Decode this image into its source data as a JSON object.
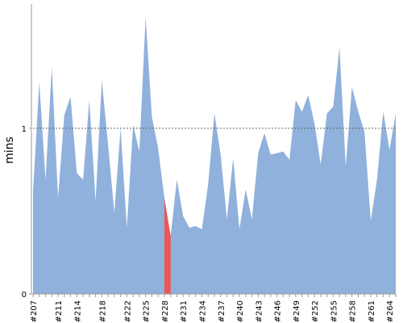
{
  "chart_data": {
    "type": "area",
    "ylabel": "mins",
    "xlabel": "",
    "ylim": [
      0,
      1.75
    ],
    "y_ticks": [
      "0",
      "1"
    ],
    "reference_line": 1,
    "grid": false,
    "colors": {
      "area": "#8fb1dc",
      "highlight": "#ee5555",
      "axis": "#999999",
      "reference": "#666666"
    },
    "x": [
      207,
      208,
      209,
      210,
      211,
      212,
      213,
      214,
      215,
      216,
      217,
      218,
      219,
      220,
      221,
      222,
      223,
      224,
      225,
      226,
      227,
      228,
      229,
      230,
      231,
      232,
      233,
      234,
      235,
      236,
      237,
      238,
      239,
      240,
      241,
      242,
      243,
      244,
      245,
      246,
      247,
      248,
      249,
      250,
      251,
      252,
      253,
      254,
      255,
      256,
      257,
      258,
      259,
      260,
      261,
      262,
      263,
      264,
      265
    ],
    "x_tick_labels": [
      "#207",
      "#211",
      "#214",
      "#218",
      "#222",
      "#225",
      "#228",
      "#231",
      "#234",
      "#237",
      "#240",
      "#243",
      "#246",
      "#249",
      "#252",
      "#255",
      "#258",
      "#261",
      "#264"
    ],
    "x_tick_values": [
      207,
      211,
      214,
      218,
      222,
      225,
      228,
      231,
      234,
      237,
      240,
      243,
      246,
      249,
      252,
      255,
      258,
      261,
      264
    ],
    "series": [
      {
        "values": [
          0.62,
          1.28,
          0.69,
          1.37,
          0.58,
          1.08,
          1.19,
          0.73,
          0.69,
          1.17,
          0.56,
          1.29,
          0.9,
          0.49,
          1.0,
          0.4,
          1.02,
          0.86,
          1.67,
          1.07,
          0.88,
          0.58,
          0.35,
          0.69,
          0.47,
          0.4,
          0.41,
          0.39,
          0.66,
          1.09,
          0.84,
          0.45,
          0.82,
          0.39,
          0.63,
          0.45,
          0.85,
          0.97,
          0.84,
          0.85,
          0.86,
          0.81,
          1.17,
          1.1,
          1.2,
          1.03,
          0.78,
          1.09,
          1.13,
          1.49,
          0.77,
          1.25,
          1.1,
          0.98,
          0.44,
          0.69,
          1.1,
          0.87,
          1.09
        ]
      }
    ],
    "highlight": {
      "from_x": 228,
      "to_x": 229
    }
  }
}
